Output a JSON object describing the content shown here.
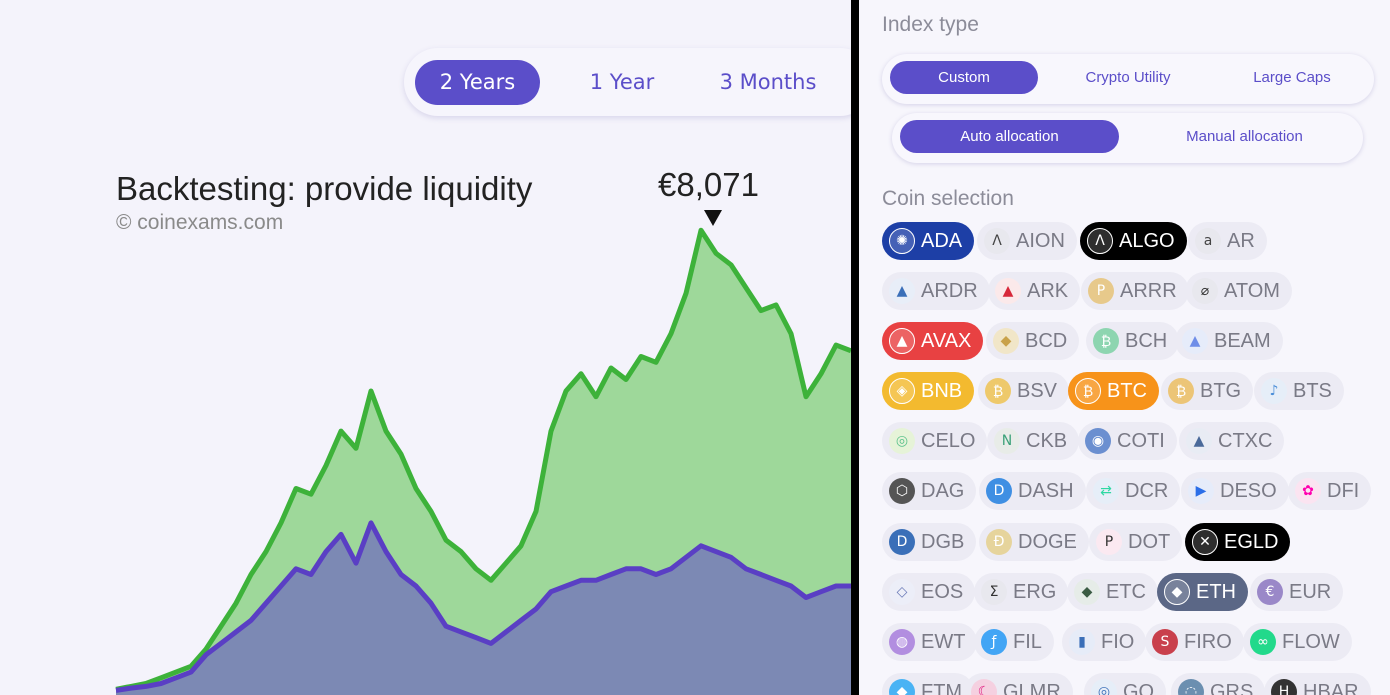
{
  "period_tabs": [
    {
      "label": "2 Years",
      "active": true
    },
    {
      "label": "1 Year",
      "active": false
    },
    {
      "label": "3 Months",
      "active": false
    }
  ],
  "chart": {
    "title": "Backtesting: provide liquidity",
    "credit": "© coinexams.com",
    "peak_label": "€8,071"
  },
  "chart_data": {
    "type": "area",
    "series": [
      {
        "color": "#3db23a",
        "fill": "#9ed89a",
        "values": [
          0.1,
          0.15,
          0.2,
          0.3,
          0.4,
          0.5,
          0.8,
          1.2,
          1.6,
          2.1,
          2.5,
          3.0,
          3.6,
          3.5,
          4.0,
          4.6,
          4.3,
          5.3,
          4.6,
          4.2,
          3.6,
          3.2,
          2.7,
          2.5,
          2.2,
          2.0,
          2.3,
          2.6,
          3.2,
          4.6,
          5.3,
          5.6,
          5.2,
          5.7,
          5.5,
          5.9,
          5.8,
          6.3,
          7.0,
          8.1,
          7.7,
          7.5,
          7.1,
          6.7,
          6.8,
          6.3,
          5.2,
          5.6,
          6.1,
          6.0
        ]
      },
      {
        "color": "#5a3fc4",
        "fill": "#7c89b4",
        "values": [
          0.08,
          0.12,
          0.15,
          0.2,
          0.3,
          0.4,
          0.7,
          0.9,
          1.1,
          1.3,
          1.6,
          1.9,
          2.2,
          2.1,
          2.5,
          2.8,
          2.3,
          3.0,
          2.5,
          2.1,
          1.9,
          1.6,
          1.2,
          1.1,
          1.0,
          0.9,
          1.1,
          1.3,
          1.5,
          1.8,
          1.9,
          2.0,
          2.0,
          2.1,
          2.2,
          2.2,
          2.1,
          2.2,
          2.4,
          2.6,
          2.5,
          2.4,
          2.2,
          2.1,
          2.0,
          1.9,
          1.7,
          1.8,
          1.9,
          1.9
        ]
      }
    ],
    "peak": {
      "label": "€8,071",
      "value": 8.071
    }
  },
  "index_type": {
    "title": "Index type",
    "options": [
      {
        "label": "Custom",
        "active": true
      },
      {
        "label": "Crypto Utility",
        "active": false
      },
      {
        "label": "Large Caps",
        "active": false
      }
    ]
  },
  "allocation": {
    "options": [
      {
        "label": "Auto allocation",
        "active": true
      },
      {
        "label": "Manual allocation",
        "active": false
      }
    ]
  },
  "coin_selection": {
    "title": "Coin selection",
    "rows": [
      [
        {
          "sym": "ADA",
          "icon": "✺",
          "icon_bg": "#1b3f8f",
          "selected": true,
          "sel_bg": "#1d3fa6"
        },
        {
          "sym": "AION",
          "icon": "Λ",
          "icon_bg": "#e8e8ee",
          "icon_color": "#444"
        },
        {
          "sym": "ALGO",
          "icon": "Λ",
          "icon_bg": "#000",
          "selected": true,
          "sel_bg": "#000"
        },
        {
          "sym": "AR",
          "icon": "a",
          "icon_bg": "#e8e8ee",
          "icon_color": "#444"
        }
      ],
      [
        {
          "sym": "ARDR",
          "icon": "▲",
          "icon_bg": "#e8eef8",
          "icon_color": "#3a6fb8"
        },
        {
          "sym": "ARK",
          "icon": "▲",
          "icon_bg": "#fbe9ea",
          "icon_color": "#d7283a"
        },
        {
          "sym": "ARRR",
          "icon": "P",
          "icon_bg": "#e7c98b",
          "icon_color": "#fff"
        },
        {
          "sym": "ATOM",
          "icon": "⌀",
          "icon_bg": "#e8e8ee",
          "icon_color": "#333"
        }
      ],
      [
        {
          "sym": "AVAX",
          "icon": "▲",
          "icon_bg": "#e84142",
          "selected": true,
          "sel_bg": "#e84142"
        },
        {
          "sym": "BCD",
          "icon": "◆",
          "icon_bg": "#f1e6c8",
          "icon_color": "#c9a24a"
        },
        {
          "sym": "BCH",
          "icon": "₿",
          "icon_bg": "#8dd5b0",
          "icon_color": "#fff"
        },
        {
          "sym": "BEAM",
          "icon": "▲",
          "icon_bg": "#e6ecfa",
          "icon_color": "#6f8ee8"
        }
      ],
      [
        {
          "sym": "BNB",
          "icon": "◈",
          "icon_bg": "#f3ba2f",
          "selected": true,
          "sel_bg": "#f3ba2f"
        },
        {
          "sym": "BSV",
          "icon": "₿",
          "icon_bg": "#eec96b",
          "icon_color": "#fff"
        },
        {
          "sym": "BTC",
          "icon": "₿",
          "icon_bg": "#f7931a",
          "selected": true,
          "sel_bg": "#f7931a"
        },
        {
          "sym": "BTG",
          "icon": "₿",
          "icon_bg": "#ecc577",
          "icon_color": "#fff"
        },
        {
          "sym": "BTS",
          "icon": "♪",
          "icon_bg": "#e6eef8",
          "icon_color": "#4a8ed8"
        }
      ],
      [
        {
          "sym": "CELO",
          "icon": "◎",
          "icon_bg": "#e6f3d8",
          "icon_color": "#5cc28c"
        },
        {
          "sym": "CKB",
          "icon": "N",
          "icon_bg": "#e8ece8",
          "icon_color": "#3ca27a"
        },
        {
          "sym": "COTI",
          "icon": "◉",
          "icon_bg": "#6b8fd0",
          "icon_color": "#fff"
        },
        {
          "sym": "CTXC",
          "icon": "▲",
          "icon_bg": "#e8ecf4",
          "icon_color": "#4a6a9a"
        }
      ],
      [
        {
          "sym": "DAG",
          "icon": "⬡",
          "icon_bg": "#555",
          "icon_color": "#fff"
        },
        {
          "sym": "DASH",
          "icon": "D",
          "icon_bg": "#3f8fe3",
          "icon_color": "#fff"
        },
        {
          "sym": "DCR",
          "icon": "⇄",
          "icon_bg": "#e6eef8",
          "icon_color": "#2ed8a3"
        },
        {
          "sym": "DESO",
          "icon": "▶",
          "icon_bg": "#e6ecfa",
          "icon_color": "#2a6ee8"
        },
        {
          "sym": "DFI",
          "icon": "✿",
          "icon_bg": "#fbe4f1",
          "icon_color": "#ff00af"
        }
      ],
      [
        {
          "sym": "DGB",
          "icon": "D",
          "icon_bg": "#3a6fb8",
          "icon_color": "#fff"
        },
        {
          "sym": "DOGE",
          "icon": "Ð",
          "icon_bg": "#e6d49c",
          "icon_color": "#fff"
        },
        {
          "sym": "DOT",
          "icon": "P",
          "icon_bg": "#fbe9f1",
          "icon_color": "#333"
        },
        {
          "sym": "EGLD",
          "icon": "✕",
          "icon_bg": "#000",
          "selected": true,
          "sel_bg": "#000"
        }
      ],
      [
        {
          "sym": "EOS",
          "icon": "◇",
          "icon_bg": "#eceef8",
          "icon_color": "#6a7ab8"
        },
        {
          "sym": "ERG",
          "icon": "Σ",
          "icon_bg": "#e8e8ee",
          "icon_color": "#333"
        },
        {
          "sym": "ETC",
          "icon": "◆",
          "icon_bg": "#e6ece8",
          "icon_color": "#3b5b43"
        },
        {
          "sym": "ETH",
          "icon": "◆",
          "icon_bg": "#5b6786",
          "selected": true,
          "sel_bg": "#5b6786"
        },
        {
          "sym": "EUR",
          "icon": "€",
          "icon_bg": "#9a88c8",
          "icon_color": "#fff"
        }
      ],
      [
        {
          "sym": "EWT",
          "icon": "◍",
          "icon_bg": "#b28ee0",
          "icon_color": "#fff"
        },
        {
          "sym": "FIL",
          "icon": "ƒ",
          "icon_bg": "#42a5f5",
          "icon_color": "#fff"
        },
        {
          "sym": "FIO",
          "icon": "▮",
          "icon_bg": "#e6ecf8",
          "icon_color": "#3a6fb8"
        },
        {
          "sym": "FIRO",
          "icon": "S",
          "icon_bg": "#c9404c",
          "icon_color": "#fff"
        },
        {
          "sym": "FLOW",
          "icon": "∞",
          "icon_bg": "#22d98b",
          "icon_color": "#fff"
        }
      ],
      [
        {
          "sym": "FTM",
          "icon": "◆",
          "icon_bg": "#4ab3f4",
          "icon_color": "#fff"
        },
        {
          "sym": "GLMR",
          "icon": "☾",
          "icon_bg": "#f5d0e0",
          "icon_color": "#e1147b"
        },
        {
          "sym": "GO",
          "icon": "◎",
          "icon_bg": "#e6eef8",
          "icon_color": "#3a6fb8"
        },
        {
          "sym": "GRS",
          "icon": "◌",
          "icon_bg": "#6b8fb0",
          "icon_color": "#fff"
        },
        {
          "sym": "HBAR",
          "icon": "H",
          "icon_bg": "#333",
          "icon_color": "#fff"
        }
      ]
    ]
  }
}
